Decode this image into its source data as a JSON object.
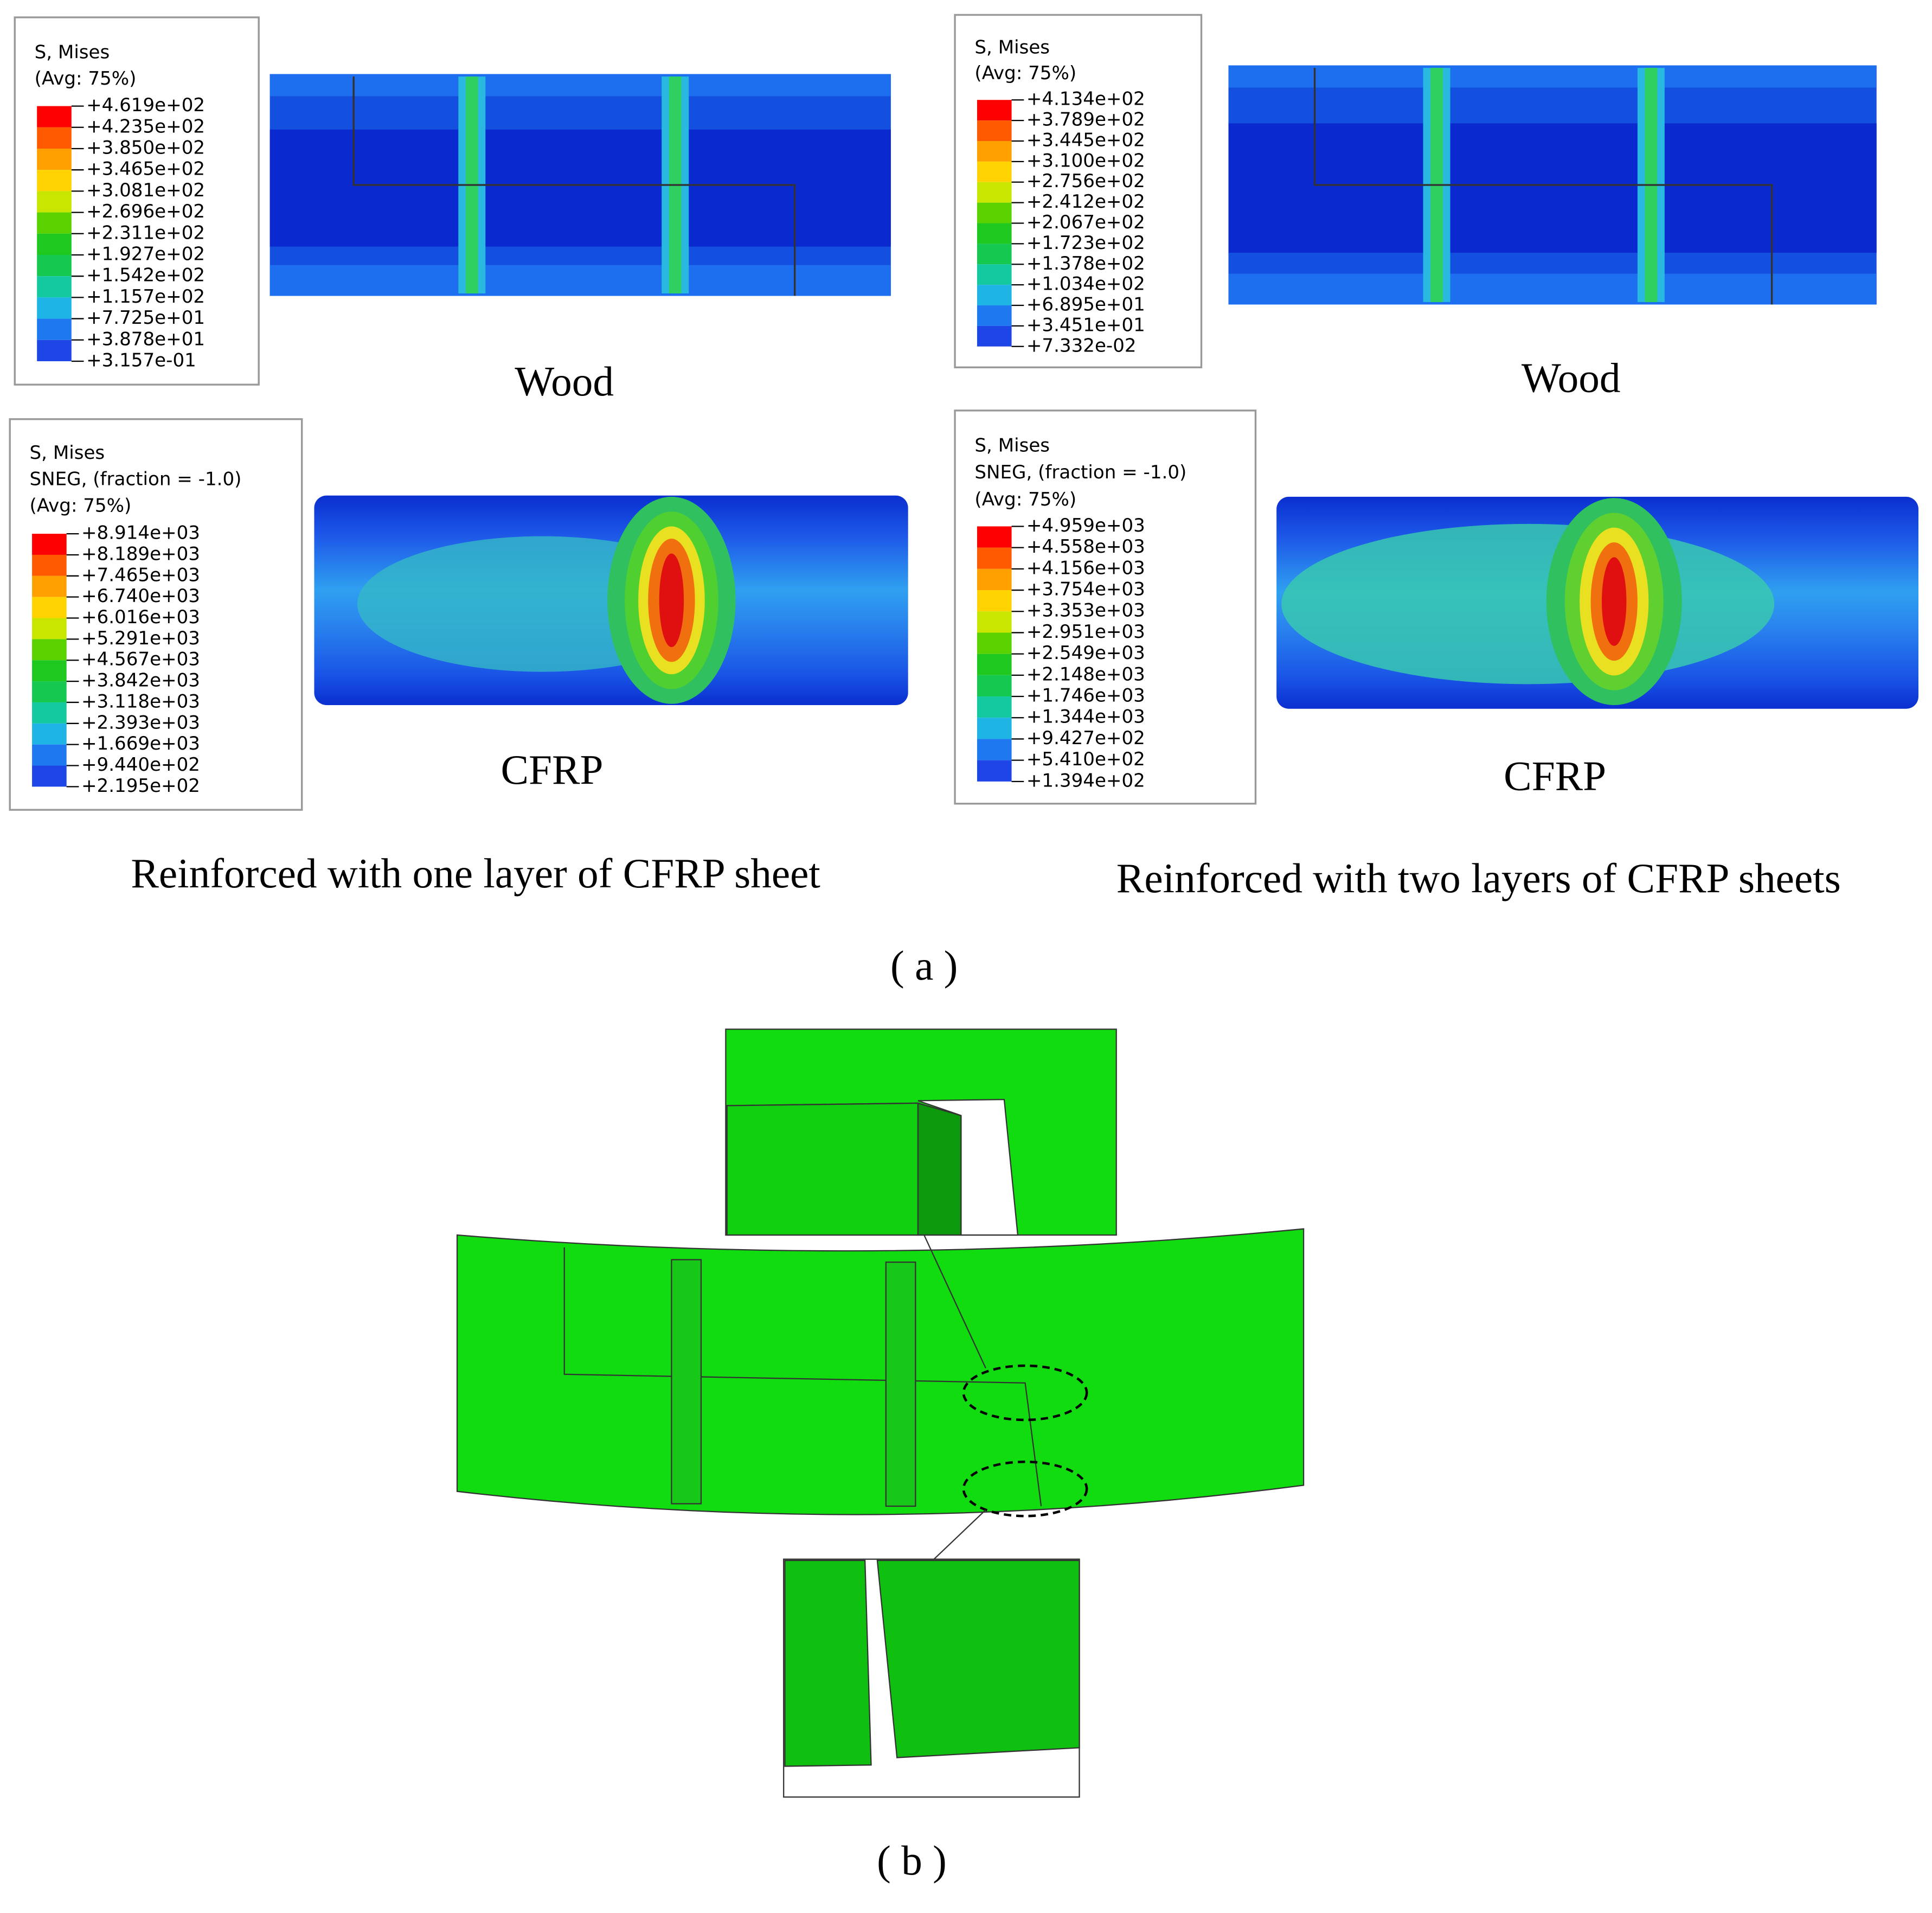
{
  "panel_a": {
    "label": "( a )",
    "columns": [
      {
        "caption": "Reinforced with one layer of CFRP sheet",
        "wood": {
          "label": "Wood",
          "legend": {
            "lines": [
              "S, Mises",
              "(Avg: 75%)"
            ],
            "values": [
              "+4.619e+02",
              "+4.235e+02",
              "+3.850e+02",
              "+3.465e+02",
              "+3.081e+02",
              "+2.696e+02",
              "+2.311e+02",
              "+1.927e+02",
              "+1.542e+02",
              "+1.157e+02",
              "+7.725e+01",
              "+3.878e+01",
              "+3.157e-01"
            ]
          }
        },
        "cfrp": {
          "label": "CFRP",
          "legend": {
            "lines": [
              "S, Mises",
              "SNEG, (fraction = -1.0)",
              "(Avg: 75%)"
            ],
            "values": [
              "+8.914e+03",
              "+8.189e+03",
              "+7.465e+03",
              "+6.740e+03",
              "+6.016e+03",
              "+5.291e+03",
              "+4.567e+03",
              "+3.842e+03",
              "+3.118e+03",
              "+2.393e+03",
              "+1.669e+03",
              "+9.440e+02",
              "+2.195e+02"
            ]
          }
        }
      },
      {
        "caption": "Reinforced with two layers of CFRP sheets",
        "wood": {
          "label": "Wood",
          "legend": {
            "lines": [
              "S, Mises",
              "(Avg: 75%)"
            ],
            "values": [
              "+4.134e+02",
              "+3.789e+02",
              "+3.445e+02",
              "+3.100e+02",
              "+2.756e+02",
              "+2.412e+02",
              "+2.067e+02",
              "+1.723e+02",
              "+1.378e+02",
              "+1.034e+02",
              "+6.895e+01",
              "+3.451e+01",
              "+7.332e-02"
            ]
          }
        },
        "cfrp": {
          "label": "CFRP",
          "legend": {
            "lines": [
              "S, Mises",
              "SNEG, (fraction = -1.0)",
              "(Avg: 75%)"
            ],
            "values": [
              "+4.959e+03",
              "+4.558e+03",
              "+4.156e+03",
              "+3.754e+03",
              "+3.353e+03",
              "+2.951e+03",
              "+2.549e+03",
              "+2.148e+03",
              "+1.746e+03",
              "+1.344e+03",
              "+9.427e+02",
              "+5.410e+02",
              "+1.394e+02"
            ]
          }
        }
      }
    ]
  },
  "panel_b": {
    "label": "( b )"
  }
}
